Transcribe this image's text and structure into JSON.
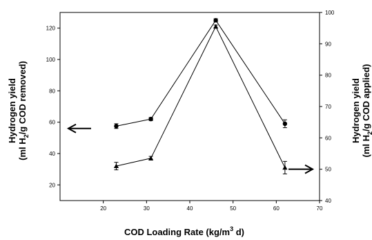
{
  "chart_data": {
    "type": "line",
    "title": "",
    "xlabel": {
      "main": "COD Loading Rate (kg/m",
      "sup": "3",
      "tail": " d)"
    },
    "ylabel_left": {
      "line1": "Hydrogen yield",
      "line2_pre": "(ml H",
      "line2_sub": "2",
      "line2_post": "/g COD removed)"
    },
    "ylabel_right": {
      "line1": "Hydrogen yield",
      "line2_pre": "(ml H",
      "line2_sub": "2",
      "line2_post": "/g COD applied)"
    },
    "xlim": [
      10,
      70
    ],
    "ylim_left": [
      10,
      130
    ],
    "ylim_right": [
      40,
      100
    ],
    "x_ticks": [
      20,
      30,
      40,
      50,
      60,
      70
    ],
    "y_ticks_left": [
      20,
      40,
      60,
      80,
      100,
      120
    ],
    "y_ticks_right": [
      40,
      50,
      60,
      70,
      80,
      90,
      100
    ],
    "series": [
      {
        "axis": "left",
        "marker": "circle",
        "x": [
          23,
          31,
          46,
          62
        ],
        "y": [
          57.5,
          62.0,
          125.0,
          59.0
        ],
        "err": [
          1.5,
          1.0,
          1.0,
          2.5
        ]
      },
      {
        "axis": "right",
        "marker": "triangle",
        "x": [
          23,
          31,
          46,
          62
        ],
        "y": [
          51.0,
          53.5,
          95.5,
          50.5
        ],
        "err": [
          1.2,
          0.6,
          0.5,
          2.0
        ]
      }
    ],
    "annotations": [
      {
        "kind": "arrow",
        "direction": "left",
        "points_to": "left axis"
      },
      {
        "kind": "arrow",
        "direction": "right",
        "points_to": "right axis"
      }
    ]
  }
}
